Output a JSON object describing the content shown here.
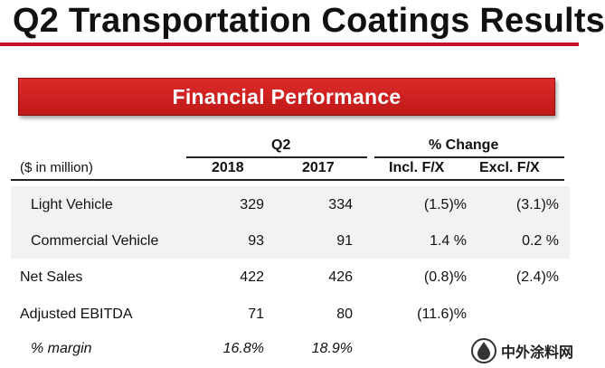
{
  "page": {
    "title": "Q2 Transportation Coatings Results",
    "banner": "Financial Performance"
  },
  "table": {
    "group_headers": {
      "q2": "Q2",
      "change": "% Change"
    },
    "unit_label": "($ in million)",
    "columns": [
      "2018",
      "2017",
      "Incl. F/X",
      "Excl. F/X"
    ],
    "rows": [
      {
        "label": "Light Vehicle",
        "c2018": "329",
        "c2017": "334",
        "incl": "(1.5)%",
        "excl": "(3.1)%"
      },
      {
        "label": "Commercial Vehicle",
        "c2018": "93",
        "c2017": "91",
        "incl": "1.4 %",
        "excl": "0.2 %"
      },
      {
        "label": "Net Sales",
        "c2018": "422",
        "c2017": "426",
        "incl": "(0.8)%",
        "excl": "(2.4)%"
      },
      {
        "label": "Adjusted EBITDA",
        "c2018": "71",
        "c2017": "80",
        "incl": "(11.6)%",
        "excl": ""
      },
      {
        "label": "% margin",
        "c2018": "16.8%",
        "c2017": "18.9%",
        "incl": "",
        "excl": ""
      }
    ]
  },
  "watermark": {
    "text": "中外涂料网",
    "icon": "paint-drop-icon"
  },
  "colors": {
    "accent": "#c8102e",
    "banner": "#cc1f1f"
  }
}
